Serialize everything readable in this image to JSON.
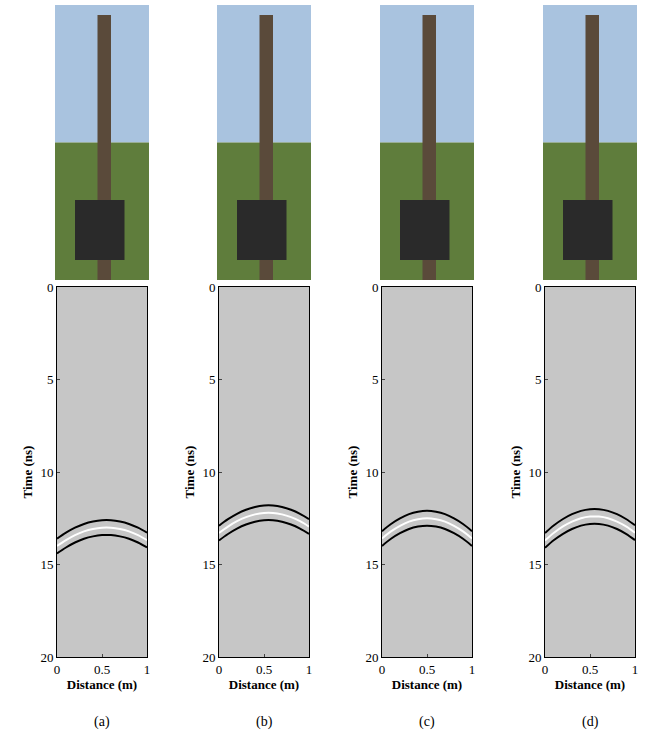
{
  "chart_data": [
    {
      "type": "line",
      "title": "(a)",
      "x_label": "Distance (m)",
      "y_label": "Time (ns)",
      "x": [
        0,
        0.1,
        0.2,
        0.3,
        0.4,
        0.5,
        0.6,
        0.7,
        0.8,
        0.9,
        1
      ],
      "series": [
        {
          "color": "#000000",
          "values": [
            13.6,
            13.28,
            13.01,
            12.81,
            12.68,
            12.61,
            12.61,
            12.68,
            12.81,
            13.01,
            13.28
          ]
        },
        {
          "color": "#ffffff",
          "values": [
            14.0,
            13.68,
            13.41,
            13.21,
            13.08,
            13.01,
            13.01,
            13.08,
            13.21,
            13.41,
            13.68
          ]
        },
        {
          "color": "#000000",
          "values": [
            14.4,
            14.08,
            13.81,
            13.61,
            13.48,
            13.41,
            13.41,
            13.48,
            13.61,
            13.81,
            14.08
          ]
        }
      ],
      "xlim": [
        0,
        1
      ],
      "ylim": [
        0,
        20
      ],
      "xticks": [
        0,
        0.5,
        1
      ],
      "yticks": [
        0,
        5,
        10,
        15,
        20
      ],
      "grid": false
    },
    {
      "type": "line",
      "title": "(b)",
      "x_label": "Distance (m)",
      "y_label": "Time (ns)",
      "x": [
        0,
        0.1,
        0.2,
        0.3,
        0.4,
        0.5,
        0.6,
        0.7,
        0.8,
        0.9,
        1
      ],
      "series": [
        {
          "color": "#000000",
          "values": [
            12.9,
            12.55,
            12.26,
            12.04,
            11.89,
            11.81,
            11.81,
            11.89,
            12.04,
            12.26,
            12.55
          ]
        },
        {
          "color": "#ffffff",
          "values": [
            13.3,
            12.95,
            12.66,
            12.44,
            12.29,
            12.21,
            12.21,
            12.29,
            12.44,
            12.66,
            12.95
          ]
        },
        {
          "color": "#000000",
          "values": [
            13.7,
            13.35,
            13.06,
            12.84,
            12.69,
            12.61,
            12.61,
            12.69,
            12.84,
            13.06,
            13.35
          ]
        }
      ],
      "xlim": [
        0,
        1
      ],
      "ylim": [
        0,
        20
      ],
      "xticks": [
        0,
        0.5,
        1
      ],
      "yticks": [
        0,
        5,
        10,
        15,
        20
      ],
      "grid": false
    },
    {
      "type": "line",
      "title": "(c)",
      "x_label": "Distance (m)",
      "y_label": "Time (ns)",
      "x": [
        0,
        0.1,
        0.2,
        0.3,
        0.4,
        0.5,
        0.6,
        0.7,
        0.8,
        0.9,
        1
      ],
      "series": [
        {
          "color": "#000000",
          "values": [
            13.2,
            12.81,
            12.51,
            12.28,
            12.15,
            12.1,
            12.15,
            12.28,
            12.51,
            12.81,
            13.2
          ]
        },
        {
          "color": "#ffffff",
          "values": [
            13.6,
            13.21,
            12.91,
            12.68,
            12.55,
            12.5,
            12.55,
            12.68,
            12.91,
            13.21,
            13.6
          ]
        },
        {
          "color": "#000000",
          "values": [
            14.0,
            13.61,
            13.31,
            13.08,
            12.95,
            12.9,
            12.95,
            13.08,
            13.31,
            13.61,
            14.0
          ]
        }
      ],
      "xlim": [
        0,
        1
      ],
      "ylim": [
        0,
        20
      ],
      "xticks": [
        0,
        0.5,
        1
      ],
      "yticks": [
        0,
        5,
        10,
        15,
        20
      ],
      "grid": false
    },
    {
      "type": "line",
      "title": "(d)",
      "x_label": "Distance (m)",
      "y_label": "Time (ns)",
      "x": [
        0,
        0.1,
        0.2,
        0.3,
        0.4,
        0.5,
        0.6,
        0.7,
        0.8,
        0.9,
        1
      ],
      "series": [
        {
          "color": "#000000",
          "values": [
            13.3,
            12.88,
            12.54,
            12.28,
            12.1,
            12.01,
            12.01,
            12.1,
            12.28,
            12.54,
            12.88
          ]
        },
        {
          "color": "#ffffff",
          "values": [
            13.7,
            13.28,
            12.94,
            12.68,
            12.5,
            12.41,
            12.41,
            12.5,
            12.68,
            12.94,
            13.28
          ]
        },
        {
          "color": "#000000",
          "values": [
            14.1,
            13.68,
            13.34,
            13.08,
            12.9,
            12.81,
            12.81,
            12.9,
            13.08,
            13.34,
            13.68
          ]
        }
      ],
      "xlim": [
        0,
        1
      ],
      "ylim": [
        0,
        20
      ],
      "xticks": [
        0,
        0.5,
        1
      ],
      "yticks": [
        0,
        5,
        10,
        15,
        20
      ],
      "grid": false
    }
  ]
}
